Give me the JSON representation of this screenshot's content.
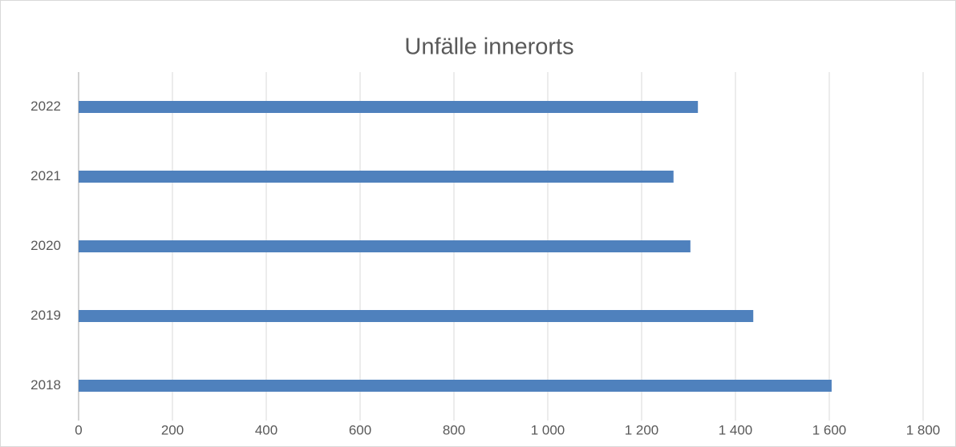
{
  "chart_data": {
    "type": "barh",
    "title": "Unfälle innerorts",
    "categories": [
      "2018",
      "2019",
      "2020",
      "2021",
      "2022"
    ],
    "values": [
      1605,
      1438,
      1304,
      1268,
      1320
    ],
    "color": "#4f81bd",
    "xlim": [
      0,
      1800
    ],
    "xticks": [
      0,
      200,
      400,
      600,
      800,
      {
        "value": 1000,
        "label": "1 000"
      },
      {
        "value": 1200,
        "label": "1 200"
      },
      {
        "value": 1400,
        "label": "1 400"
      },
      {
        "value": 1600,
        "label": "1 600"
      },
      {
        "value": 1800,
        "label": "1 800"
      }
    ],
    "grid": true
  }
}
